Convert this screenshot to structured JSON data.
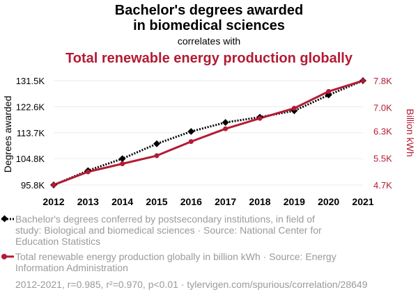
{
  "chart_data": {
    "type": "line",
    "title_line1": "Bachelor's degrees awarded",
    "title_line2": "in biomedical sciences",
    "connector": "correlates with",
    "subtitle": "Total renewable energy production globally",
    "ylabel_left": "Degrees awarded",
    "ylabel_right": "Billion kWh",
    "x": [
      2012,
      2013,
      2014,
      2015,
      2016,
      2017,
      2018,
      2019,
      2020,
      2021
    ],
    "x_ticks": [
      "2012",
      "2013",
      "2014",
      "2015",
      "2016",
      "2017",
      "2018",
      "2019",
      "2020",
      "2021"
    ],
    "y_left_ticks": [
      {
        "value": 95.8,
        "label": "95.8K"
      },
      {
        "value": 104.8,
        "label": "104.8K"
      },
      {
        "value": 113.7,
        "label": "113.7K"
      },
      {
        "value": 122.6,
        "label": "122.6K"
      },
      {
        "value": 131.5,
        "label": "131.5K"
      }
    ],
    "y_right_ticks": [
      {
        "value": 4.7,
        "label": "4.7K"
      },
      {
        "value": 5.5,
        "label": "5.5K"
      },
      {
        "value": 6.3,
        "label": "6.3K"
      },
      {
        "value": 7.0,
        "label": "7.0K"
      },
      {
        "value": 7.8,
        "label": "7.8K"
      }
    ],
    "y_left_range": [
      95.8,
      131.5
    ],
    "y_right_range": [
      4.7,
      7.8
    ],
    "grid": true,
    "series": [
      {
        "name": "Bachelor's degrees conferred by postsecondary institutions, in field of study: Biological and biomedical sciences · Source: National Center for Education Statistics",
        "axis": "left",
        "values": [
          95.8,
          100.7,
          104.8,
          109.9,
          114.1,
          117.2,
          119.0,
          121.2,
          126.6,
          131.5
        ],
        "color": "#000000",
        "style": "dotted",
        "marker": "diamond"
      },
      {
        "name": "Total renewable energy production globally in billion kWh · Source: Energy Information Administration",
        "axis": "right",
        "values": [
          4.7,
          5.09,
          5.33,
          5.57,
          5.99,
          6.37,
          6.68,
          6.98,
          7.48,
          7.8
        ],
        "color": "#b31b34",
        "style": "solid",
        "marker": "circle"
      }
    ],
    "legend": [
      {
        "lines": [
          "Bachelor's degrees conferred by postsecondary institutions, in field of",
          "study: Biological and biomedical sciences · Source: National Center for",
          "Education Statistics"
        ]
      },
      {
        "lines": [
          "Total renewable energy production globally in billion kWh · Source: Energy",
          "Information Administration"
        ]
      }
    ],
    "footer": "2012-2021, r=0.985, r²=0.970, p<0.01 · tylervigen.com/spurious/correlation/28649"
  },
  "colors": {
    "series1": "#000000",
    "series2": "#b31b34",
    "text": "#000000",
    "legend_text": "#9a9a9a",
    "grid": "#ebebeb"
  }
}
